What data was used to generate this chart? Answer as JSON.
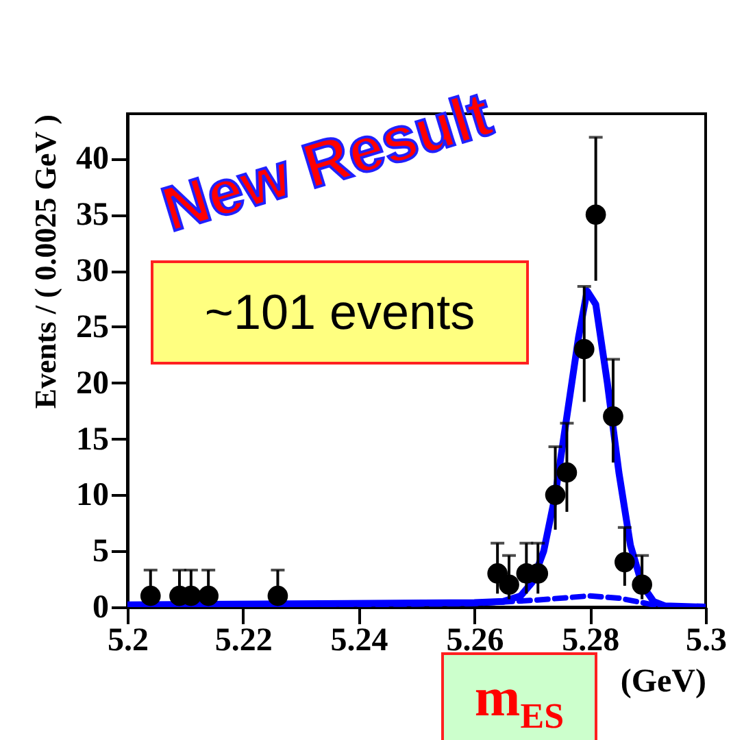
{
  "chart_data": {
    "type": "scatter",
    "xlabel": "(GeV)",
    "ylabel": "Events / ( 0.0025 GeV )",
    "xlim": [
      5.2,
      5.3
    ],
    "xticks": [
      5.2,
      5.22,
      5.24,
      5.26,
      5.28,
      5.3
    ],
    "ylim": [
      0,
      44
    ],
    "yticks": [
      0,
      5,
      10,
      15,
      20,
      25,
      30,
      35,
      40
    ],
    "grid": false,
    "annotations": [
      "New Result",
      "~101 events",
      "m$_{ES}$"
    ],
    "series": [
      {
        "type": "line",
        "color": "#0000ff",
        "line_style": "dashed",
        "x": [
          5.2,
          5.26,
          5.27,
          5.28,
          5.285,
          5.29,
          5.293,
          5.3
        ],
        "values": [
          0.1,
          0.3,
          0.6,
          1.0,
          0.8,
          0.3,
          0,
          0
        ]
      },
      {
        "type": "line",
        "color": "#0000ff",
        "line_style": "solid",
        "x": [
          5.2,
          5.26,
          5.265,
          5.268,
          5.27,
          5.272,
          5.274,
          5.276,
          5.278,
          5.2795,
          5.281,
          5.283,
          5.285,
          5.287,
          5.289,
          5.291,
          5.293,
          5.3
        ],
        "values": [
          0.2,
          0.4,
          0.5,
          1.0,
          2.2,
          5,
          10,
          17,
          24,
          28.2,
          27,
          20,
          12,
          5.5,
          2,
          0.5,
          0.1,
          0
        ]
      },
      {
        "color": "#000000",
        "marker": "circle",
        "x": [
          5.204,
          5.209,
          5.211,
          5.214,
          5.226,
          5.264,
          5.266,
          5.269,
          5.271,
          5.274,
          5.276,
          5.279,
          5.281,
          5.284,
          5.286,
          5.289
        ],
        "values": [
          1,
          1,
          1,
          1,
          1,
          3,
          2,
          3,
          3,
          10,
          12,
          23,
          35,
          17,
          4,
          2
        ],
        "errors": [
          [
            1,
            3.3
          ],
          [
            1,
            3.3
          ],
          [
            1,
            3.3
          ],
          [
            1,
            3.3
          ],
          [
            1,
            3.3
          ],
          [
            1.2,
            5.7
          ],
          [
            0.7,
            4.6
          ],
          [
            1.2,
            5.7
          ],
          [
            1.2,
            5.7
          ],
          [
            6.9,
            14.3
          ],
          [
            8.5,
            16.4
          ],
          [
            18.3,
            28.6
          ],
          [
            29.1,
            41.9
          ],
          [
            12.9,
            22.1
          ],
          [
            1.9,
            7.1
          ],
          [
            0.7,
            4.6
          ]
        ]
      }
    ]
  }
}
